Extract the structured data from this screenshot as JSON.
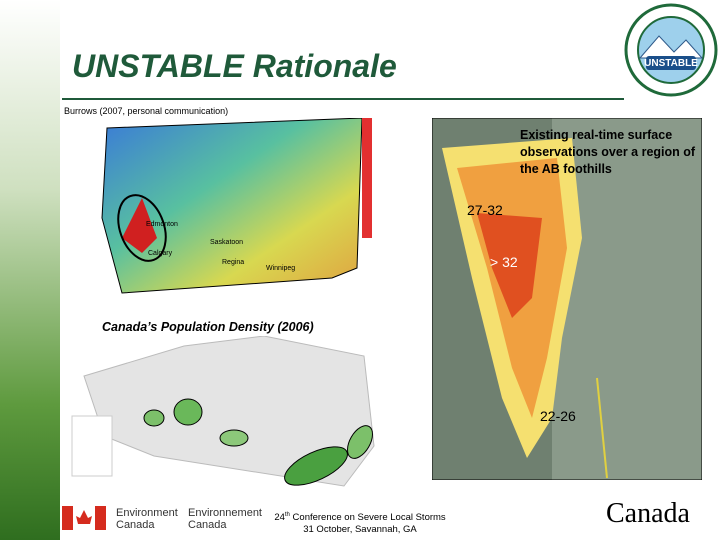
{
  "header": {
    "title": "UNSTABLE Rationale",
    "logo_text": "UNSTABLE"
  },
  "left_map": {
    "credit": "Burrows (2007, personal communication)",
    "cities": [
      "Edmonton",
      "Calgary",
      "Saskatoon",
      "Regina",
      "Winnipeg"
    ]
  },
  "right_map": {
    "note": "Existing real-time surface observations over a region of the AB foothills",
    "zones": [
      "27-32",
      "> 32",
      "22-26"
    ]
  },
  "population_map": {
    "title": "Canada’s Population Density (2006)"
  },
  "footer": {
    "dept_en": [
      "Environment",
      "Canada"
    ],
    "dept_fr": [
      "Environnement",
      "Canada"
    ],
    "conference_number": "24",
    "conference_ordinal": "th",
    "conference_name": "Conference on Severe Local Storms",
    "date": "31 October, Savannah, GA",
    "wordmark": "Canada"
  }
}
